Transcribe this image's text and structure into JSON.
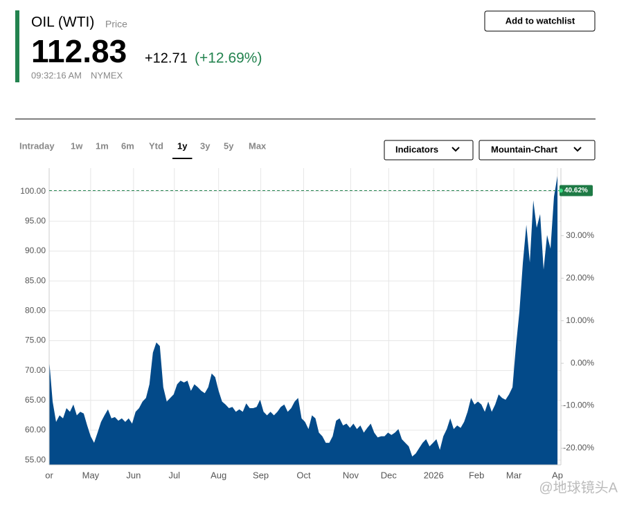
{
  "header": {
    "symbol": "OIL (WTI)",
    "price_label": "Price",
    "price": "112.83",
    "change": "+12.71",
    "change_pct": "(+12.69%)",
    "time": "09:32:16 AM",
    "exchange": "NYMEX",
    "watchlist_button": "Add to watchlist"
  },
  "tabs": [
    "Intraday",
    "1w",
    "1m",
    "6m",
    "Ytd",
    "1y",
    "3y",
    "5y",
    "Max"
  ],
  "selected_tab": "1y",
  "controls": [
    "Indicators",
    "Mountain-Chart"
  ],
  "watermark": "@地球镜头A",
  "chart_data": {
    "type": "area",
    "color": "#034a89",
    "grid": true,
    "values": [
      71.8,
      64.8,
      61.4,
      62.5,
      62,
      63.7,
      63.1,
      64.3,
      62.5,
      63.1,
      62.8,
      60.8,
      59,
      57.9,
      59.6,
      61.4,
      62.5,
      63.5,
      62,
      62.2,
      61.6,
      62,
      61.4,
      62,
      61.1,
      63.1,
      63.7,
      64.8,
      65.4,
      67.7,
      73,
      74.7,
      74.1,
      67.2,
      64.8,
      65.4,
      66,
      67.7,
      68.3,
      68,
      68.3,
      66.6,
      67.7,
      67.2,
      66.6,
      66.2,
      67.2,
      69.5,
      68.9,
      66.6,
      64.8,
      64.3,
      63.7,
      63.9,
      63.1,
      63.5,
      63.1,
      64.5,
      63.7,
      63.7,
      63.9,
      65.1,
      63.1,
      62.5,
      63.1,
      62.5,
      63.1,
      63.9,
      64.3,
      63.1,
      63.7,
      64.8,
      65.4,
      62,
      61.4,
      60.2,
      62.5,
      62,
      59.6,
      59,
      57.9,
      57.9,
      59,
      61.6,
      62,
      60.8,
      61.1,
      60.4,
      61.1,
      60.2,
      60.8,
      59.6,
      60.4,
      61.1,
      59.6,
      58.8,
      59,
      59,
      59.6,
      59.2,
      59.6,
      60.2,
      58.5,
      57.9,
      57.3,
      55.6,
      56.1,
      57,
      57.9,
      58.5,
      57.3,
      57.9,
      58.5,
      56.7,
      59,
      60.2,
      62,
      60.2,
      60.8,
      60.4,
      61.4,
      63.1,
      65.4,
      64.3,
      64.8,
      64.3,
      63.1,
      64.8,
      63.1,
      64.3,
      66,
      65.4,
      65.1,
      66,
      67.2,
      74.1,
      79.9,
      88.1,
      94.4,
      88.1,
      98.5,
      93.9,
      96.2,
      86.9,
      92.7,
      90.4,
      99.1,
      102.6
    ],
    "xlim": [
      0,
      148
    ],
    "xticks": [
      {
        "value": 0,
        "label": "or"
      },
      {
        "value": 12,
        "label": "May"
      },
      {
        "value": 24.4,
        "label": "Jun"
      },
      {
        "value": 36.2,
        "label": "Jul"
      },
      {
        "value": 49,
        "label": "Aug"
      },
      {
        "value": 61.2,
        "label": "Sep"
      },
      {
        "value": 73.6,
        "label": "Oct"
      },
      {
        "value": 87.2,
        "label": "Nov"
      },
      {
        "value": 98.2,
        "label": "Dec"
      },
      {
        "value": 111.2,
        "label": "2026"
      },
      {
        "value": 123.6,
        "label": "Feb"
      },
      {
        "value": 134.4,
        "label": "Mar"
      },
      {
        "value": 147,
        "label": "Ap"
      }
    ],
    "ylim": [
      54.2,
      103.9
    ],
    "yticks": [
      {
        "value": 55,
        "label": "55.00"
      },
      {
        "value": 60,
        "label": "60.00"
      },
      {
        "value": 65,
        "label": "65.00"
      },
      {
        "value": 70,
        "label": "70.00"
      },
      {
        "value": 75,
        "label": "75.00"
      },
      {
        "value": 80,
        "label": "80.00"
      },
      {
        "value": 85,
        "label": "85.00"
      },
      {
        "value": 90,
        "label": "90.00"
      },
      {
        "value": 95,
        "label": "95.00"
      },
      {
        "value": 100,
        "label": "100.00"
      }
    ],
    "y2lim": [
      -23.9,
      45.9
    ],
    "y2ticks": [
      {
        "value": -20,
        "label": "-20.00%"
      },
      {
        "value": -10,
        "label": "-10.00%"
      },
      {
        "value": 0,
        "label": "0.00%"
      },
      {
        "value": 10,
        "label": "10.00%"
      },
      {
        "value": 20,
        "label": "20.00%"
      },
      {
        "value": 30,
        "label": "30.00%"
      }
    ],
    "reference_line": {
      "value": 40.62,
      "label": "40.62%",
      "axis": "y2"
    }
  }
}
